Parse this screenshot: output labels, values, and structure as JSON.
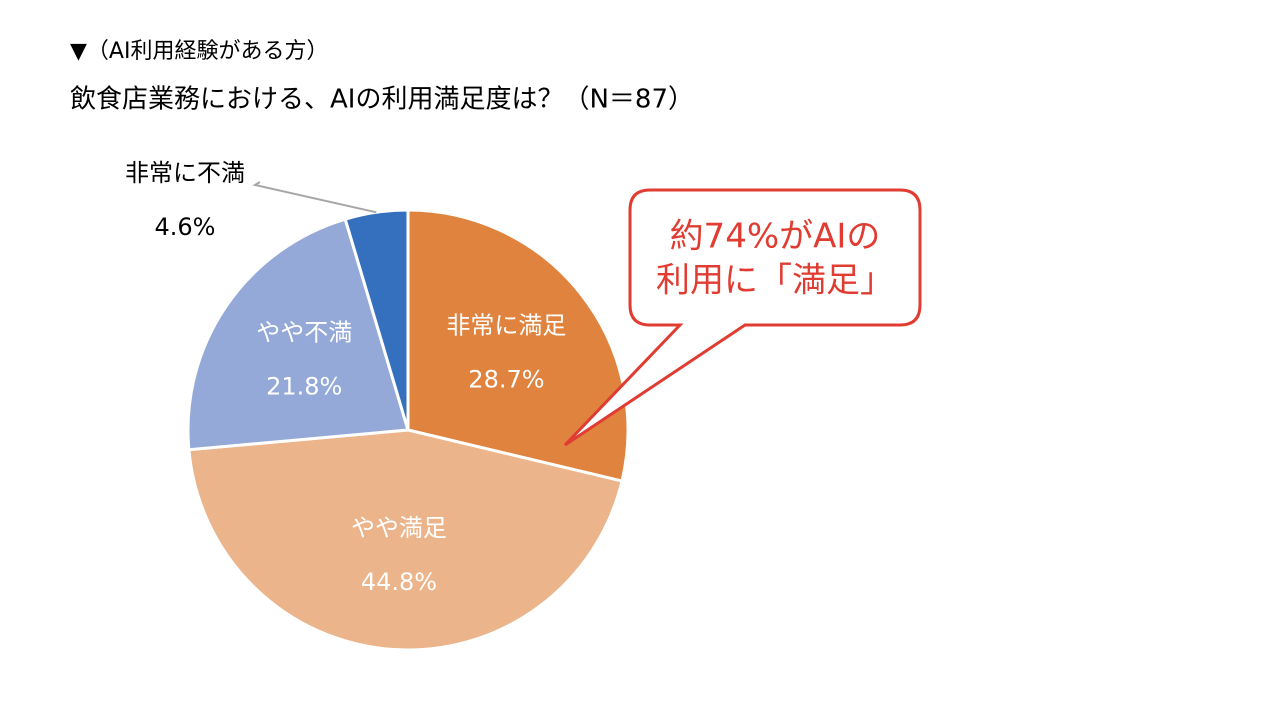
{
  "chart_data": {
    "type": "pie",
    "title": "▼（AI利用経験がある方）",
    "subtitle": "飲食店業務における、AIの利用満足度は？（N＝87）",
    "categories": [
      "非常に満足",
      "やや満足",
      "やや不満",
      "非常に不満"
    ],
    "values": [
      28.7,
      44.8,
      21.8,
      4.6
    ],
    "value_labels": [
      "28.7%",
      "44.8%",
      "21.8%",
      "4.6%"
    ],
    "colors": [
      "#e0833f",
      "#ebb48a",
      "#94a9d7",
      "#3470be"
    ],
    "annotation": [
      "約74%がAIの",
      "利用に「満足」"
    ]
  }
}
